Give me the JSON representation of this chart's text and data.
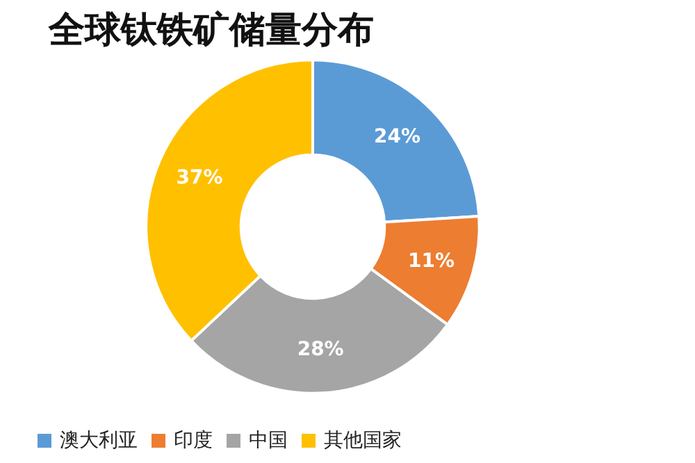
{
  "chart_data": {
    "type": "donut",
    "title": "全球钛铁矿储量分布",
    "categories": [
      "澳大利亚",
      "印度",
      "中国",
      "其他国家"
    ],
    "values": [
      24,
      11,
      28,
      37
    ],
    "colors": [
      "#5b9bd5",
      "#ed7d31",
      "#a5a5a5",
      "#ffc000"
    ],
    "value_labels": [
      "24%",
      "11%",
      "28%",
      "37%"
    ],
    "legend": "bottom"
  }
}
